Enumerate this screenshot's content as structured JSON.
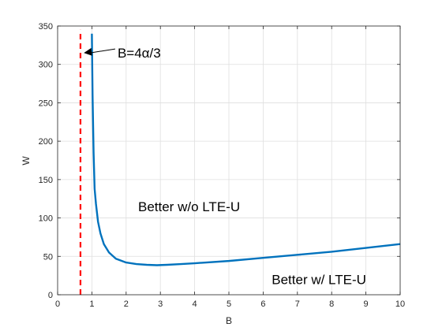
{
  "chart_data": {
    "type": "line",
    "title": "",
    "xlabel": "B",
    "ylabel": "W",
    "xlim": [
      0,
      10
    ],
    "ylim": [
      0,
      350
    ],
    "xticks": [
      0,
      1,
      2,
      3,
      4,
      5,
      6,
      7,
      8,
      9,
      10
    ],
    "yticks": [
      0,
      50,
      100,
      150,
      200,
      250,
      300,
      350
    ],
    "grid": true,
    "series": [
      {
        "color": "#0072BD",
        "style": "solid",
        "x": [
          1.0,
          1.02,
          1.05,
          1.08,
          1.12,
          1.18,
          1.25,
          1.35,
          1.5,
          1.7,
          2.0,
          2.3,
          2.6,
          2.9,
          3.2,
          3.6,
          4.0,
          5.0,
          6.0,
          7.0,
          8.0,
          9.0,
          10.0
        ],
        "y": [
          340,
          260,
          185,
          138,
          118,
          95,
          80,
          66,
          55,
          47,
          42,
          40,
          39,
          38.5,
          39,
          40,
          41,
          44,
          48,
          52,
          56,
          61,
          66
        ]
      },
      {
        "color": "#FF0000",
        "style": "dashed",
        "x": [
          0.667,
          0.667
        ],
        "y": [
          0,
          345
        ]
      }
    ],
    "annotations": [
      {
        "text": "B=4α/3",
        "x": 1.75,
        "y": 315,
        "arrow_to": [
          0.72,
          315
        ]
      },
      {
        "text": "Better w/o LTE-U",
        "x": 2.35,
        "y": 115
      },
      {
        "text": "Better w/ LTE-U",
        "x": 6.25,
        "y": 20
      }
    ],
    "colors": {
      "curve": "#0072BD",
      "threshold": "#FF0000",
      "grid": "#DFDFDF",
      "axis": "#262626"
    }
  }
}
